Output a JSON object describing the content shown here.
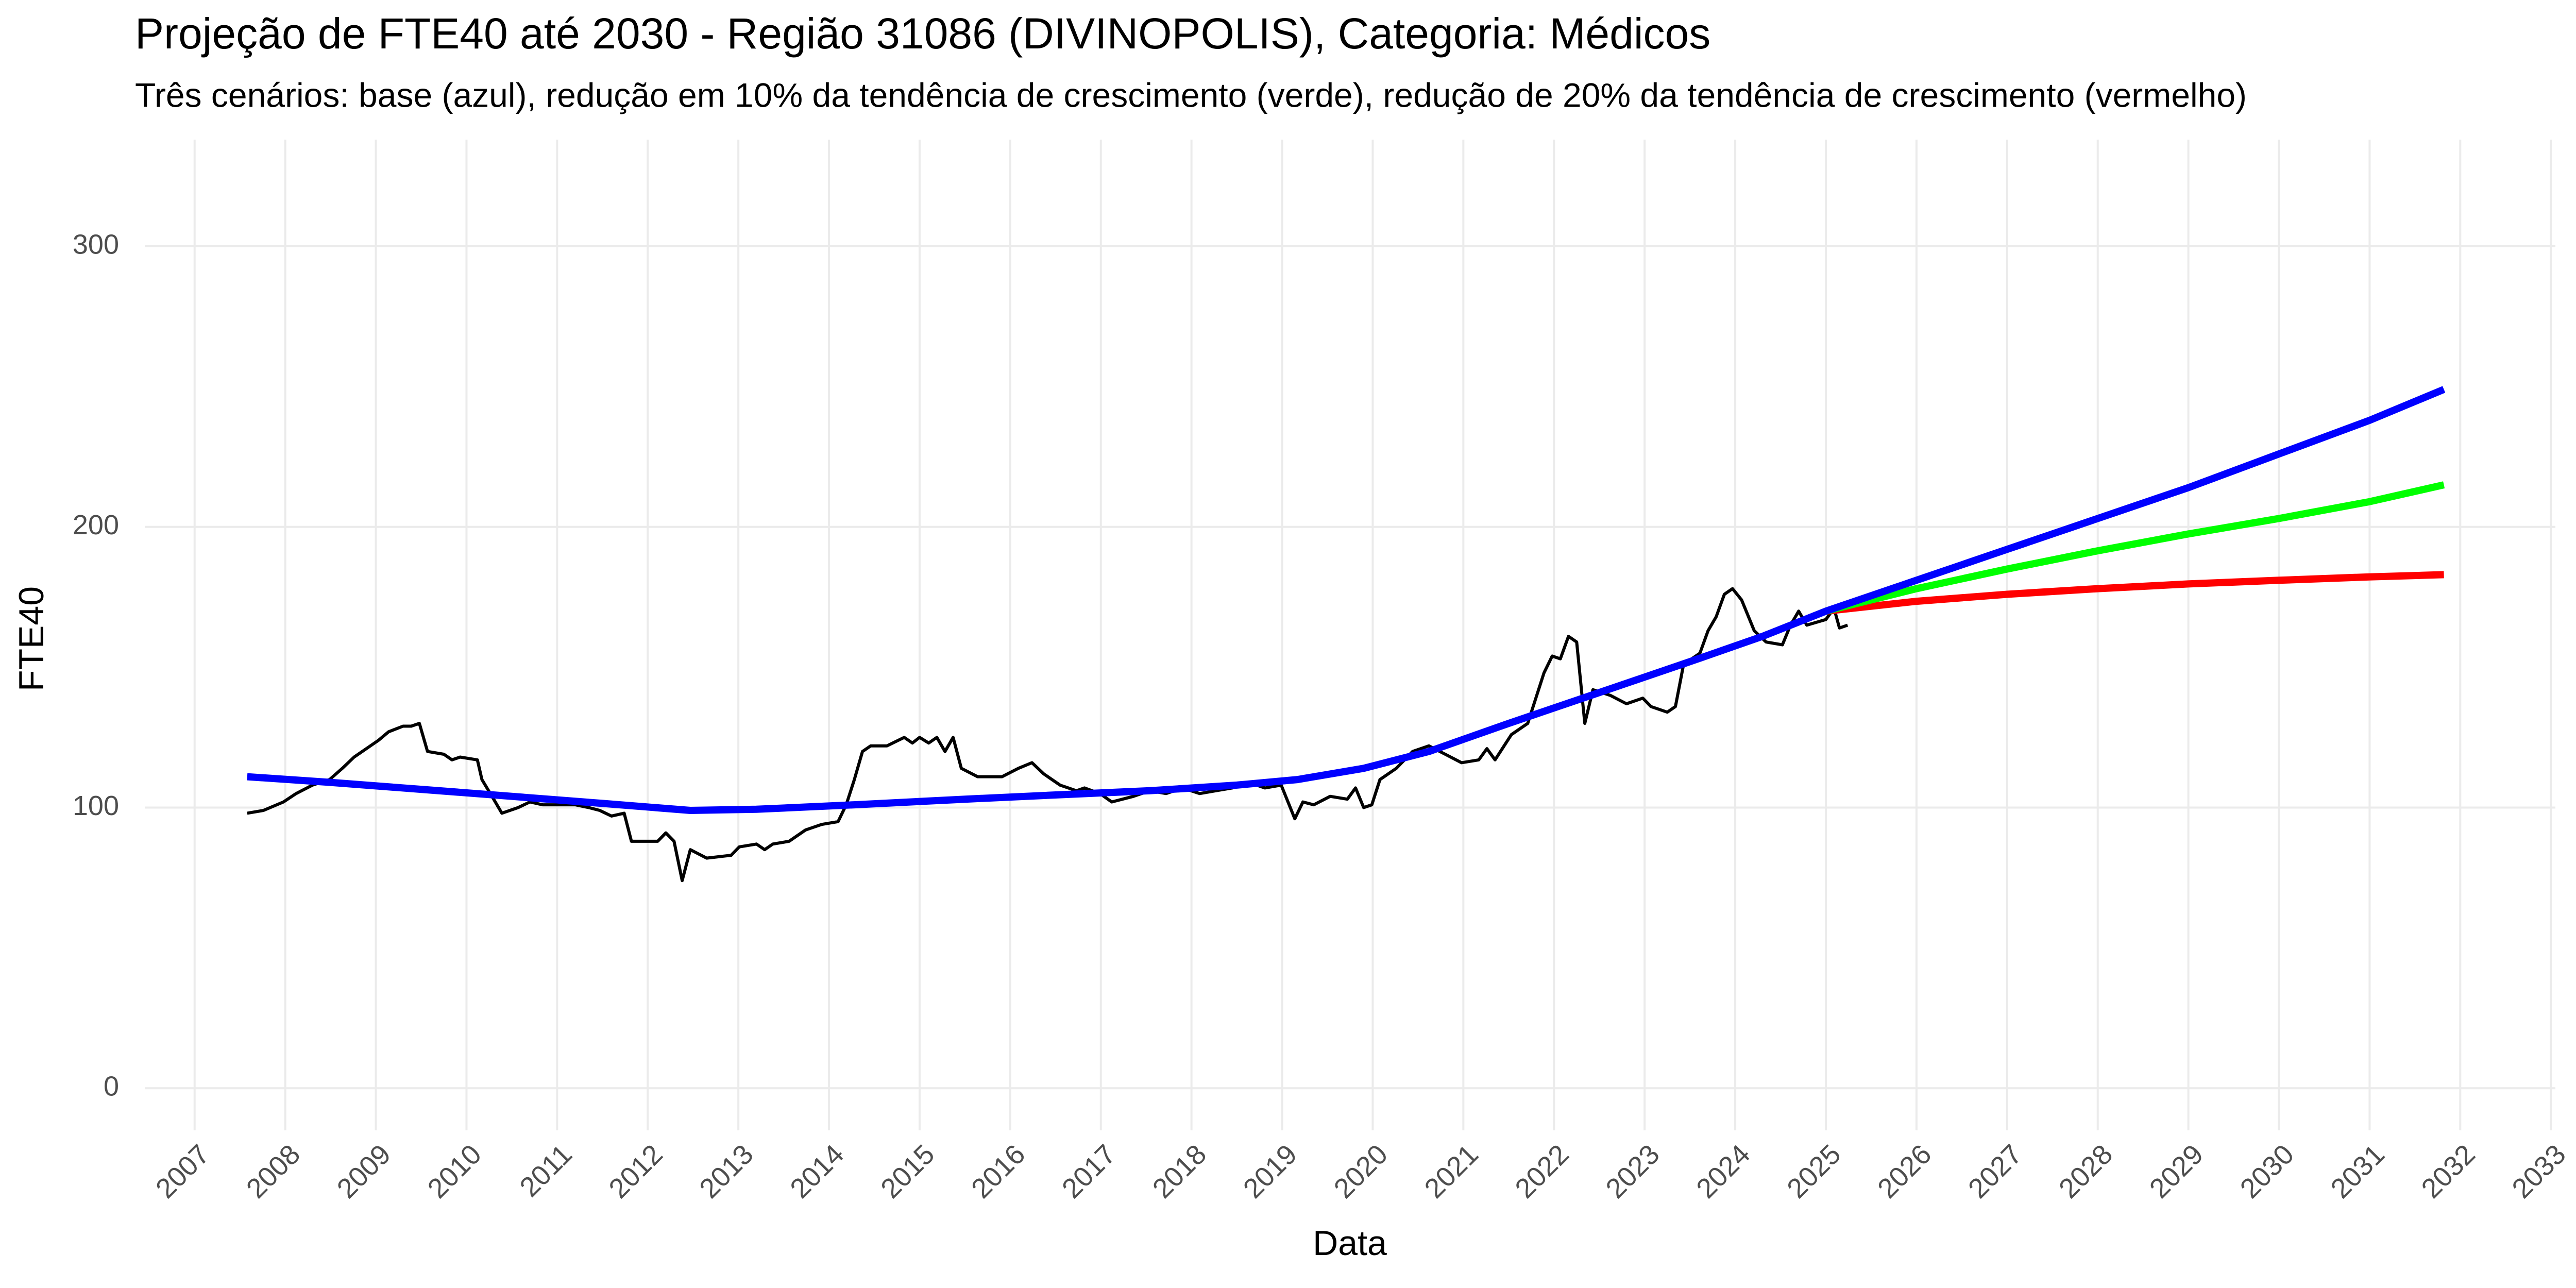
{
  "chart_data": {
    "type": "line",
    "title": "Projeção de FTE40 até 2030 - Região 31086 (DIVINOPOLIS), Categoria: Médicos",
    "subtitle": "Três cenários: base (azul), redução em 10% da tendência de crescimento (verde), redução de 20% da tendência de crescimento (vermelho)",
    "x_label": "Data",
    "y_label": "FTE40",
    "xlim": [
      2006.45,
      2033.05
    ],
    "ylim": [
      -15,
      338
    ],
    "xticks": [
      2007,
      2008,
      2009,
      2010,
      2011,
      2012,
      2013,
      2014,
      2015,
      2016,
      2017,
      2018,
      2019,
      2020,
      2021,
      2022,
      2023,
      2024,
      2025,
      2026,
      2027,
      2028,
      2029,
      2030,
      2031,
      2032,
      2033
    ],
    "yticks": [
      0,
      100,
      200,
      300
    ],
    "grid": true,
    "series": [
      {
        "color": "#000000",
        "width": 6,
        "x": [
          2007.58,
          2007.76,
          2007.98,
          2008.12,
          2008.3,
          2008.49,
          2008.63,
          2008.76,
          2008.94,
          2009.03,
          2009.14,
          2009.3,
          2009.39,
          2009.48,
          2009.57,
          2009.75,
          2009.84,
          2009.93,
          2010.12,
          2010.17,
          2010.3,
          2010.39,
          2010.57,
          2010.7,
          2010.84,
          2011.02,
          2011.2,
          2011.35,
          2011.47,
          2011.6,
          2011.74,
          2011.82,
          2012.11,
          2012.2,
          2012.29,
          2012.38,
          2012.47,
          2012.65,
          2012.92,
          2013.01,
          2013.2,
          2013.29,
          2013.38,
          2013.56,
          2013.74,
          2013.92,
          2014.1,
          2014.19,
          2014.28,
          2014.37,
          2014.46,
          2014.64,
          2014.83,
          2014.92,
          2015.0,
          2015.1,
          2015.19,
          2015.28,
          2015.37,
          2015.46,
          2015.64,
          2015.91,
          2016.09,
          2016.24,
          2016.37,
          2016.55,
          2016.73,
          2016.82,
          2016.99,
          2017.12,
          2017.36,
          2017.54,
          2017.72,
          2017.9,
          2018.09,
          2018.27,
          2018.45,
          2018.63,
          2018.81,
          2018.99,
          2019.14,
          2019.23,
          2019.35,
          2019.53,
          2019.72,
          2019.81,
          2019.9,
          2019.99,
          2020.08,
          2020.26,
          2020.44,
          2020.62,
          2020.8,
          2020.98,
          2021.17,
          2021.26,
          2021.35,
          2021.53,
          2021.71,
          2021.89,
          2021.98,
          2022.07,
          2022.16,
          2022.25,
          2022.34,
          2022.43,
          2022.62,
          2022.8,
          2022.98,
          2023.07,
          2023.25,
          2023.34,
          2023.43,
          2023.61,
          2023.7,
          2023.79,
          2023.88,
          2023.97,
          2024.07,
          2024.21,
          2024.34,
          2024.52,
          2024.61,
          2024.7,
          2024.79,
          2025.0,
          2025.09,
          2025.15,
          2025.24
        ],
        "values": [
          98,
          99,
          102,
          105,
          108,
          110,
          114,
          118,
          122,
          124,
          127,
          129,
          129,
          130,
          120,
          119,
          117,
          118,
          117,
          110,
          103,
          98,
          100,
          102,
          101,
          101,
          101,
          100,
          99,
          97,
          98,
          88,
          88,
          91,
          88,
          74,
          85,
          82,
          83,
          86,
          87,
          85,
          87,
          88,
          92,
          94,
          95,
          101,
          110,
          120,
          122,
          122,
          125,
          123,
          125,
          123,
          125,
          120,
          125,
          114,
          111,
          111,
          114,
          116,
          112,
          108,
          106,
          107,
          105,
          102,
          104,
          106,
          105,
          107,
          105,
          106,
          107,
          109,
          107,
          108,
          96,
          102,
          101,
          104,
          103,
          107,
          100,
          101,
          110,
          114,
          120,
          122,
          119,
          116,
          117,
          121,
          117,
          126,
          130,
          148,
          154,
          153,
          161,
          159,
          130,
          142,
          140,
          137,
          139,
          136,
          134,
          136,
          151,
          155,
          163,
          168,
          176,
          178,
          174,
          163,
          159,
          158,
          165,
          170,
          165,
          167,
          171,
          164,
          165
        ]
      },
      {
        "color": "#ff0000",
        "width": 14,
        "x": [
          2025.0,
          2026.0,
          2027.0,
          2028.0,
          2029.0,
          2030.0,
          2031.0,
          2031.82
        ],
        "values": [
          170,
          173.5,
          176,
          178,
          179.7,
          181,
          182.2,
          183
        ]
      },
      {
        "color": "#00ff00",
        "width": 14,
        "x": [
          2025.0,
          2026.0,
          2027.0,
          2028.0,
          2029.0,
          2030.0,
          2031.0,
          2031.82
        ],
        "values": [
          170,
          178,
          185,
          191.5,
          197.5,
          203,
          209,
          215
        ]
      },
      {
        "color": "#0000ff",
        "width": 14,
        "x": [
          2007.58,
          2008.49,
          2009.5,
          2010.5,
          2011.5,
          2012.47,
          2013.2,
          2014.28,
          2015.5,
          2016.5,
          2017.54,
          2018.5,
          2019.17,
          2019.9,
          2020.62,
          2021.5,
          2022.5,
          2023.5,
          2024.3,
          2025.0,
          2026.0,
          2027.0,
          2028.0,
          2029.0,
          2030.0,
          2031.0,
          2031.82
        ],
        "values": [
          111,
          109,
          106.5,
          104,
          101.5,
          99,
          99.4,
          101,
          103,
          104.5,
          106,
          108,
          110,
          114,
          120,
          130,
          141,
          152,
          161,
          170,
          181,
          192,
          203,
          214,
          226,
          238,
          249
        ]
      }
    ]
  }
}
